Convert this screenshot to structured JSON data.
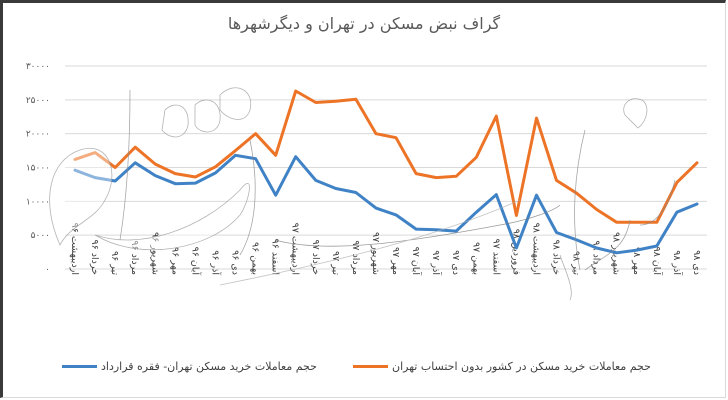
{
  "title": "گراف نبض مسکن در تهران و دیگرشهرها",
  "legend": {
    "blue_label": "حجم معاملات خرید مسکن تهران- فقره قرارداد",
    "orange_label": "حجم معاملات خرید مسکن در کشور بدون احتساب تهران"
  },
  "colors": {
    "blue": "#3f82c6",
    "orange": "#ed7426",
    "grid": "#d9d9d9",
    "axis": "#d9d9d9",
    "watermark": "#8a8a8a"
  },
  "chart_data": {
    "type": "line",
    "title": "گراف نبض مسکن در تهران و دیگرشهرها",
    "xlabel": "",
    "ylabel": "",
    "ylim": [
      0,
      30000
    ],
    "yticks": [
      0,
      5000,
      10000,
      15000,
      20000,
      25000,
      30000
    ],
    "ytick_labels": [
      "۰",
      "۵۰۰۰",
      "۱۰۰۰۰",
      "۱۵۰۰۰",
      "۲۰۰۰۰",
      "۲۵۰۰۰",
      "۳۰۰۰۰"
    ],
    "grid": true,
    "legend_position": "bottom",
    "categories": [
      "اردیبهشت ۹۶",
      "خرداد ۹۶",
      "تیر ۹۶",
      "مرداد ۹۶",
      "شهریور ۹۶",
      "مهر ۹۶",
      "آبان ۹۶",
      "آذر ۹۶",
      "دی ۹۶",
      "بهمن ۹۶",
      "اسفند ۹۶",
      "اردیبهشت ۹۷",
      "خرداد ۹۷",
      "تیر ۹۷",
      "مرداد ۹۷",
      "شهریور ۹۷",
      "مهر ۹۷",
      "آبان ۹۷",
      "آذر ۹۷",
      "دی ۹۷",
      "بهمن ۹۷",
      "اسفند ۹۷",
      "فروردین ۹۸",
      "اردیبهشت ۹۸",
      "خرداد ۹۸",
      "تیر ۹۸",
      "مرداد ۹۸",
      "شهریور ۹۸",
      "مهر ۹۸",
      "آبان ۹۸",
      "آذر ۹۸",
      "دی ۹۸"
    ],
    "series": [
      {
        "name": "حجم معاملات خرید مسکن تهران- فقره قرارداد",
        "color": "#3f82c6",
        "values": [
          14600,
          13500,
          13000,
          15700,
          13800,
          12600,
          12700,
          14200,
          16800,
          16300,
          10900,
          16600,
          13100,
          11900,
          11300,
          9000,
          8000,
          5900,
          5800,
          5600,
          8400,
          11000,
          3100,
          10900,
          5400,
          4300,
          3100,
          2400,
          2800,
          3400,
          8400,
          9600
        ]
      },
      {
        "name": "حجم معاملات خرید مسکن در کشور بدون احتساب تهران",
        "color": "#ed7426",
        "values": [
          16200,
          17200,
          15000,
          18000,
          15500,
          14100,
          13600,
          15100,
          17500,
          20000,
          16800,
          26300,
          24600,
          24800,
          25100,
          20000,
          19400,
          14100,
          13500,
          13700,
          16500,
          22600,
          7900,
          22300,
          13100,
          11200,
          8800,
          6900,
          6900,
          6900,
          12800,
          15700
        ]
      }
    ]
  }
}
